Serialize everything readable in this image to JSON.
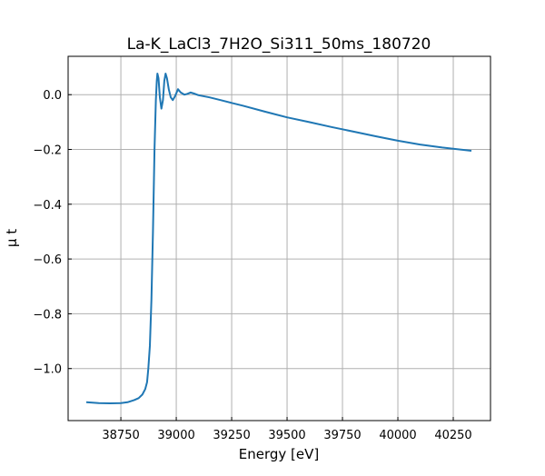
{
  "chart_data": {
    "type": "line",
    "title": "La-K_LaCl3_7H2O_Si311_50ms_180720",
    "xlabel": "Energy [eV]",
    "ylabel": "μ t",
    "xlim": [
      38512,
      40418
    ],
    "ylim": [
      -1.19,
      0.14
    ],
    "grid": true,
    "xticks": [
      38750,
      39000,
      39250,
      39500,
      39750,
      40000,
      40250
    ],
    "xtick_labels": [
      "38750",
      "39000",
      "39250",
      "39500",
      "39750",
      "40000",
      "40250"
    ],
    "yticks": [
      0.0,
      -0.2,
      -0.4,
      -0.6,
      -0.8,
      -1.0
    ],
    "ytick_labels": [
      "0.0",
      "−0.2",
      "−0.4",
      "−0.6",
      "−0.8",
      "−1.0"
    ],
    "series": [
      {
        "name": "mu",
        "color": "#1f77b4",
        "x": [
          38594,
          38650,
          38700,
          38750,
          38780,
          38810,
          38830,
          38847,
          38860,
          38868,
          38874,
          38881,
          38888,
          38895,
          38902,
          38908,
          38912,
          38915,
          38920,
          38926,
          38933,
          38940,
          38946,
          38952,
          38958,
          38966,
          38975,
          38984,
          38995,
          39008,
          39020,
          39037,
          39050,
          39065,
          39080,
          39100,
          39150,
          39200,
          39250,
          39300,
          39400,
          39500,
          39600,
          39700,
          39800,
          39900,
          40000,
          40100,
          40200,
          40332
        ],
        "y": [
          -1.123,
          -1.126,
          -1.127,
          -1.126,
          -1.123,
          -1.115,
          -1.108,
          -1.095,
          -1.075,
          -1.05,
          -1.0,
          -0.917,
          -0.75,
          -0.5,
          -0.2,
          -0.02,
          0.05,
          0.077,
          0.06,
          -0.01,
          -0.051,
          -0.02,
          0.05,
          0.077,
          0.06,
          0.02,
          -0.01,
          -0.02,
          -0.005,
          0.02,
          0.008,
          0.0,
          0.003,
          0.008,
          0.004,
          -0.002,
          -0.01,
          -0.02,
          -0.03,
          -0.04,
          -0.062,
          -0.083,
          -0.1,
          -0.118,
          -0.135,
          -0.152,
          -0.168,
          -0.182,
          -0.193,
          -0.205
        ]
      }
    ]
  }
}
